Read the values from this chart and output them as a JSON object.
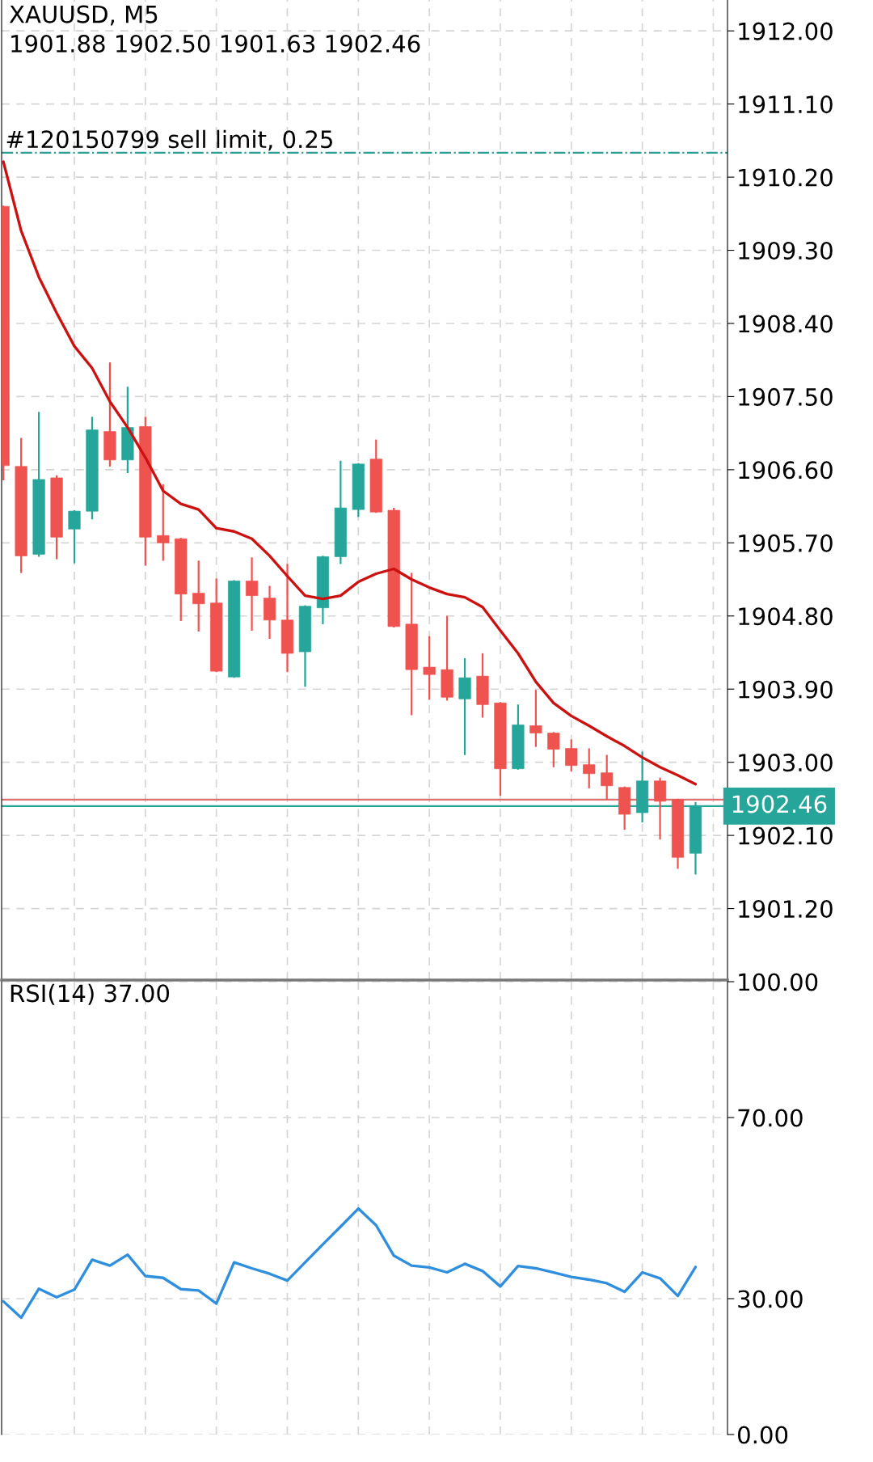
{
  "chart_data": [
    {
      "type": "candlestick",
      "title": "XAUUSD, M5",
      "subtitle": "1901.88 1902.50 1901.63 1902.46",
      "categories": [
        null,
        null,
        null,
        null,
        null,
        null,
        null,
        null,
        null,
        null,
        null,
        null,
        null,
        null,
        null,
        null,
        null,
        null,
        null,
        null,
        null,
        null,
        null,
        null,
        null,
        null,
        null,
        null,
        null,
        null,
        null,
        null,
        null,
        null,
        null,
        null,
        null,
        null,
        null,
        null
      ],
      "ohlc": [
        [
          1909.84,
          1909.84,
          1906.48,
          1906.65
        ],
        [
          1906.64,
          1906.98,
          1905.34,
          1905.54
        ],
        [
          1905.56,
          1907.3,
          1905.54,
          1906.48
        ],
        [
          1906.5,
          1906.52,
          1905.51,
          1905.77
        ],
        [
          1905.87,
          1906.09,
          1905.46,
          1906.09
        ],
        [
          1906.09,
          1907.24,
          1906.0,
          1907.09
        ],
        [
          1907.07,
          1907.91,
          1906.65,
          1906.72
        ],
        [
          1906.72,
          1907.61,
          1906.57,
          1907.12
        ],
        [
          1907.13,
          1907.24,
          1905.43,
          1905.77
        ],
        [
          1905.79,
          1906.41,
          1905.49,
          1905.7
        ],
        [
          1905.75,
          1905.75,
          1904.75,
          1905.07
        ],
        [
          1905.08,
          1905.47,
          1904.62,
          1904.95
        ],
        [
          1904.96,
          1905.25,
          1904.12,
          1904.12
        ],
        [
          1904.05,
          1905.23,
          1904.05,
          1905.23
        ],
        [
          1905.23,
          1905.51,
          1904.63,
          1905.05
        ],
        [
          1905.02,
          1905.16,
          1904.53,
          1904.75
        ],
        [
          1904.75,
          1905.43,
          1904.12,
          1904.34
        ],
        [
          1904.36,
          1904.92,
          1903.94,
          1904.92
        ],
        [
          1904.9,
          1905.53,
          1904.71,
          1905.53
        ],
        [
          1905.53,
          1906.7,
          1905.45,
          1906.13
        ],
        [
          1906.11,
          1906.67,
          1906.03,
          1906.67
        ],
        [
          1906.73,
          1906.96,
          1906.08,
          1906.08
        ],
        [
          1906.1,
          1906.12,
          1904.67,
          1904.67
        ],
        [
          1904.7,
          1905.32,
          1903.59,
          1904.14
        ],
        [
          1904.17,
          1904.54,
          1903.78,
          1904.08
        ],
        [
          1904.14,
          1904.79,
          1903.77,
          1903.8
        ],
        [
          1903.78,
          1904.27,
          1903.1,
          1904.04
        ],
        [
          1904.06,
          1904.33,
          1903.56,
          1903.71
        ],
        [
          1903.73,
          1903.73,
          1902.6,
          1902.92
        ],
        [
          1902.92,
          1903.7,
          1902.92,
          1903.46
        ],
        [
          1903.45,
          1903.88,
          1903.2,
          1903.36
        ],
        [
          1903.36,
          1903.36,
          1902.95,
          1903.16
        ],
        [
          1903.17,
          1903.27,
          1902.9,
          1902.96
        ],
        [
          1902.97,
          1903.16,
          1902.69,
          1902.86
        ],
        [
          1902.87,
          1903.08,
          1902.55,
          1902.71
        ],
        [
          1902.69,
          1902.69,
          1902.18,
          1902.36
        ],
        [
          1902.38,
          1903.12,
          1902.27,
          1902.77
        ],
        [
          1902.77,
          1902.8,
          1902.06,
          1902.52
        ],
        [
          1902.54,
          1902.54,
          1901.7,
          1901.83
        ],
        [
          1901.88,
          1902.5,
          1901.63,
          1902.46
        ]
      ],
      "colors": [
        "#ef5350",
        "#ef5350",
        "#26a69a",
        "#ef5350",
        "#26a69a",
        "#26a69a",
        "#ef5350",
        "#26a69a",
        "#ef5350",
        "#ef5350",
        "#ef5350",
        "#ef5350",
        "#ef5350",
        "#26a69a",
        "#ef5350",
        "#ef5350",
        "#ef5350",
        "#26a69a",
        "#26a69a",
        "#26a69a",
        "#26a69a",
        "#ef5350",
        "#ef5350",
        "#ef5350",
        "#ef5350",
        "#ef5350",
        "#26a69a",
        "#ef5350",
        "#ef5350",
        "#26a69a",
        "#ef5350",
        "#ef5350",
        "#ef5350",
        "#ef5350",
        "#ef5350",
        "#ef5350",
        "#26a69a",
        "#ef5350",
        "#ef5350",
        "#26a69a"
      ],
      "series": [
        {
          "type": "line",
          "color": "#cc1111",
          "values": [
            1910.39,
            1909.54,
            1908.97,
            1908.53,
            1908.12,
            1907.85,
            1907.44,
            1907.12,
            1906.75,
            1906.34,
            1906.18,
            1906.11,
            1905.88,
            1905.84,
            1905.75,
            1905.54,
            1905.29,
            1905.05,
            1905.01,
            1905.05,
            1905.22,
            1905.32,
            1905.38,
            1905.25,
            1905.15,
            1905.07,
            1905.03,
            1904.91,
            1904.62,
            1904.34,
            1903.99,
            1903.73,
            1903.57,
            1903.45,
            1903.32,
            1903.2,
            1903.06,
            1902.94,
            1902.84,
            1902.73
          ]
        }
      ],
      "ylim": [
        1900.32,
        1912.38
      ],
      "yticks": [
        {
          "value": 1901.2,
          "label": "1901.20"
        },
        {
          "value": 1902.1,
          "label": "1902.10"
        },
        {
          "value": 1903.0,
          "label": "1903.00"
        },
        {
          "value": 1903.9,
          "label": "1903.90"
        },
        {
          "value": 1904.8,
          "label": "1904.80"
        },
        {
          "value": 1905.7,
          "label": "1905.70"
        },
        {
          "value": 1906.6,
          "label": "1906.60"
        },
        {
          "value": 1907.5,
          "label": "1907.50"
        },
        {
          "value": 1908.4,
          "label": "1908.40"
        },
        {
          "value": 1909.3,
          "label": "1909.30"
        },
        {
          "value": 1910.2,
          "label": "1910.20"
        },
        {
          "value": 1911.1,
          "label": "1911.10"
        },
        {
          "value": 1912.0,
          "label": "1912.00"
        }
      ],
      "ref_lines": [
        {
          "axis": "y",
          "value": 1910.5,
          "label": "#120150799 sell limit, 0.25",
          "color": "#2a9d96",
          "line_style": "dashdot"
        },
        {
          "axis": "y",
          "value": 1902.54,
          "color": "#e07070",
          "line_style": "solid"
        },
        {
          "axis": "y",
          "value": 1902.46,
          "label": "1902.46",
          "color": "#26a69a",
          "line_style": "solid"
        }
      ],
      "grid": true,
      "tick_labels": "y"
    },
    {
      "type": "line",
      "title": "RSI(14) 37.00",
      "categories": [
        null,
        null,
        null,
        null,
        null,
        null,
        null,
        null,
        null,
        null,
        null,
        null,
        null,
        null,
        null,
        null,
        null,
        null,
        null,
        null,
        null,
        null,
        null,
        null,
        null,
        null,
        null,
        null,
        null,
        null,
        null,
        null,
        null,
        null,
        null,
        null,
        null,
        null,
        null,
        null
      ],
      "series": [
        {
          "color": "#2f8fdd",
          "values": [
            29.4,
            25.8,
            32.2,
            30.3,
            32.0,
            38.6,
            37.3,
            39.7,
            35.0,
            34.6,
            32.1,
            31.8,
            28.9,
            38.0,
            36.7,
            35.5,
            34.0,
            38.0,
            42.0,
            45.9,
            49.9,
            46.2,
            39.5,
            37.3,
            36.9,
            35.8,
            37.7,
            36.1,
            32.7,
            37.2,
            36.7,
            35.8,
            34.8,
            34.2,
            33.4,
            31.5,
            35.8,
            34.5,
            30.6,
            37.0
          ]
        }
      ],
      "ylim": [
        0,
        100
      ],
      "yticks": [
        {
          "value": 0,
          "label": "0.00"
        },
        {
          "value": 30,
          "label": "30.00"
        },
        {
          "value": 70,
          "label": "70.00"
        },
        {
          "value": 100,
          "label": "100.00"
        }
      ],
      "grid": true,
      "tick_labels": "y"
    }
  ]
}
